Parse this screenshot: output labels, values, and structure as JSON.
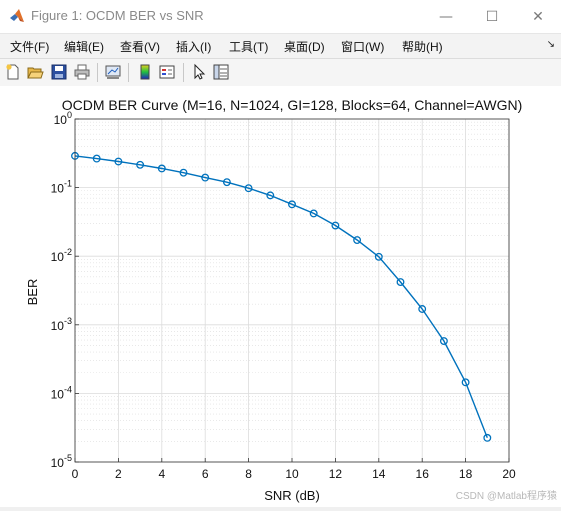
{
  "window": {
    "title": "Figure 1: OCDM BER vs SNR",
    "controls": [
      "—",
      "☐",
      "✕"
    ]
  },
  "menu": [
    "文件(F)",
    "编辑(E)",
    "查看(V)",
    "插入(I)",
    "工具(T)",
    "桌面(D)",
    "窗口(W)",
    "帮助(H)"
  ],
  "toolbar": [
    "new-figure-icon",
    "open-icon",
    "save-icon",
    "print-icon",
    "link-plot-icon",
    "colorbar-icon",
    "legend-icon",
    "pointer-icon",
    "property-editor-icon"
  ],
  "colors": {
    "series": "#0072bd",
    "grid": "#dcdcdc"
  },
  "watermark": "CSDN @Matlab程序猿",
  "chart_data": {
    "type": "line",
    "title": "OCDM BER Curve (M=16, N=1024, GI=128, Blocks=64, Channel=AWGN)",
    "xlabel": "SNR (dB)",
    "ylabel": "BER",
    "xlim": [
      0,
      20
    ],
    "ylim": [
      1e-05,
      1
    ],
    "yscale": "log",
    "grid": true,
    "marker": "circle",
    "x_ticks": [
      "0",
      "2",
      "4",
      "6",
      "8",
      "10",
      "12",
      "14",
      "16",
      "18",
      "20"
    ],
    "y_ticks": [
      {
        "base": "10",
        "exp": "0"
      },
      {
        "base": "10",
        "exp": "-1"
      },
      {
        "base": "10",
        "exp": "-2"
      },
      {
        "base": "10",
        "exp": "-3"
      },
      {
        "base": "10",
        "exp": "-4"
      },
      {
        "base": "10",
        "exp": "-5"
      }
    ],
    "series": [
      {
        "x": [
          0,
          1,
          2,
          3,
          4,
          5,
          6,
          7,
          8,
          9,
          10,
          11,
          12,
          13,
          14,
          15,
          16,
          17,
          18,
          19
        ],
        "y": [
          0.29,
          0.265,
          0.24,
          0.215,
          0.19,
          0.165,
          0.14,
          0.12,
          0.098,
          0.077,
          0.057,
          0.042,
          0.028,
          0.0172,
          0.0098,
          0.0042,
          0.0017,
          0.00058,
          0.000145,
          2.25e-05
        ]
      }
    ]
  }
}
